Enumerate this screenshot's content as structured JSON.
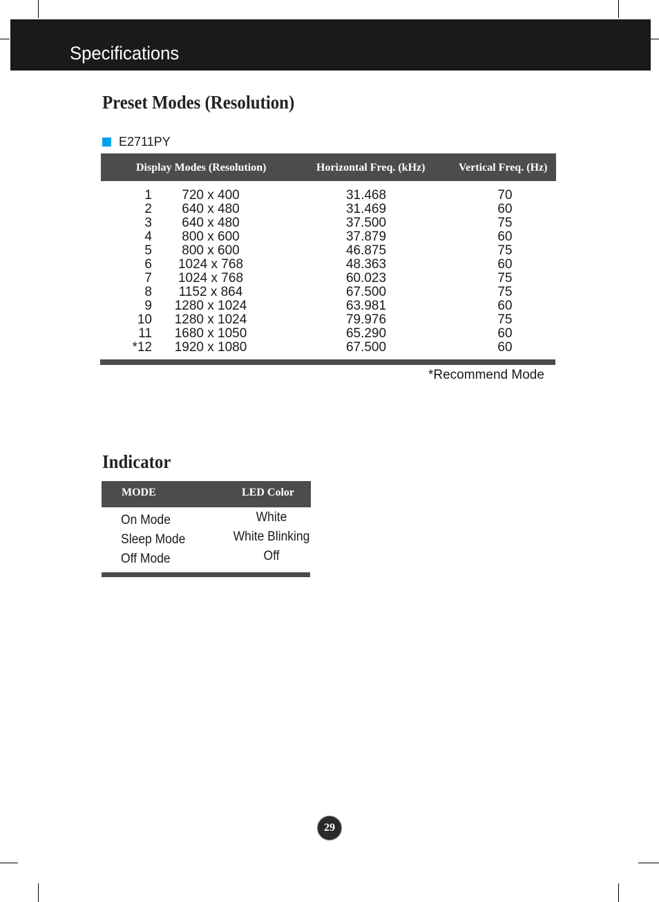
{
  "header": {
    "title": "Specifications"
  },
  "preset": {
    "title": "Preset Modes (Resolution)",
    "model": "E2711PY",
    "bullet_color": "#00a0e9",
    "columns": [
      "Display Modes (Resolution)",
      "Horizontal Freq. (kHz)",
      "Vertical Freq. (Hz)"
    ],
    "rows": [
      {
        "no": "1",
        "res": "720 x 400",
        "h": "31.468",
        "v": "70"
      },
      {
        "no": "2",
        "res": "640 x 480",
        "h": "31.469",
        "v": "60"
      },
      {
        "no": "3",
        "res": "640 x 480",
        "h": "37.500",
        "v": "75"
      },
      {
        "no": "4",
        "res": "800 x 600",
        "h": "37.879",
        "v": "60"
      },
      {
        "no": "5",
        "res": "800 x 600",
        "h": "46.875",
        "v": "75"
      },
      {
        "no": "6",
        "res": "1024 x 768",
        "h": "48.363",
        "v": "60"
      },
      {
        "no": "7",
        "res": "1024 x 768",
        "h": "60.023",
        "v": "75"
      },
      {
        "no": "8",
        "res": "1152 x 864",
        "h": "67.500",
        "v": "75"
      },
      {
        "no": "9",
        "res": "1280 x 1024",
        "h": "63.981",
        "v": "60"
      },
      {
        "no": "10",
        "res": "1280 x 1024",
        "h": "79.976",
        "v": "75"
      },
      {
        "no": "11",
        "res": "1680 x 1050",
        "h": "65.290",
        "v": "60"
      },
      {
        "no": "*12",
        "res": "1920 x 1080",
        "h": "67.500",
        "v": "60"
      }
    ],
    "note": "*Recommend Mode"
  },
  "indicator": {
    "title": "Indicator",
    "columns": [
      "MODE",
      "LED Color"
    ],
    "rows": [
      {
        "mode": "On Mode",
        "led": "White"
      },
      {
        "mode": "Sleep Mode",
        "led": "White Blinking"
      },
      {
        "mode": "Off Mode",
        "led": "Off"
      }
    ]
  },
  "page_number": "29"
}
